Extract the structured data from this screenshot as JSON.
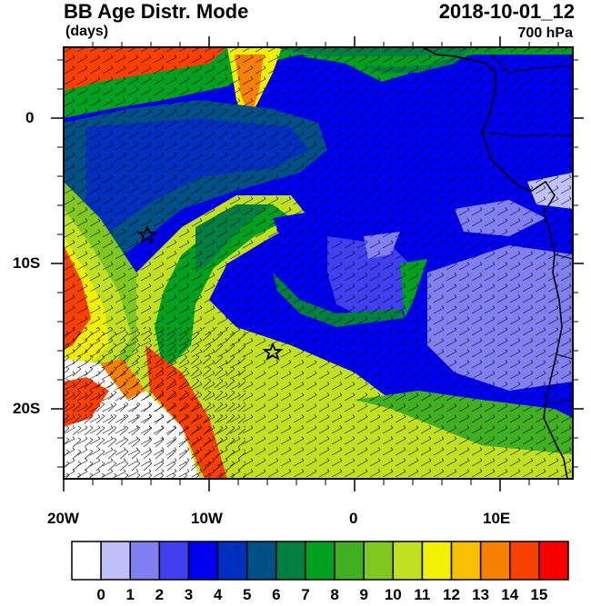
{
  "header": {
    "title": "BB Age Distr. Mode",
    "units": "(days)",
    "datetime": "2018-10-01_12",
    "level": "700 hPa"
  },
  "map": {
    "lon_labels": [
      "20W",
      "10W",
      "0",
      "10E"
    ],
    "lat_labels": [
      "0",
      "10S",
      "20S"
    ],
    "markers": [
      {
        "name": "star-marker-west",
        "lon": -14.4,
        "lat": -8.0
      },
      {
        "name": "star-marker-south",
        "lon": -5.7,
        "lat": -16.0
      }
    ]
  },
  "colorbar": {
    "labels": [
      "0",
      "1",
      "2",
      "3",
      "4",
      "5",
      "6",
      "7",
      "8",
      "9",
      "10",
      "11",
      "12",
      "13",
      "14",
      "15"
    ],
    "colors": [
      "#ffffff",
      "#c0c0f8",
      "#8080f0",
      "#4040f0",
      "#0000f0",
      "#0030c0",
      "#005088",
      "#008040",
      "#00a020",
      "#40b020",
      "#80c820",
      "#c0e020",
      "#f0f000",
      "#f8c000",
      "#f88000",
      "#f84000",
      "#f80000"
    ]
  },
  "palette": {
    "white": "#ffffff",
    "lavender": "#c0c0f8",
    "periwinkle": "#8080f0",
    "blue": "#0000f0",
    "navy": "#0030c0",
    "teal": "#005088",
    "darkgreen": "#008040",
    "green": "#00a020",
    "yellowgreen": "#c0e020",
    "lime": "#80c820",
    "yellow": "#f0f000",
    "orange": "#f88000",
    "redorange": "#f84000",
    "red": "#f80000"
  }
}
